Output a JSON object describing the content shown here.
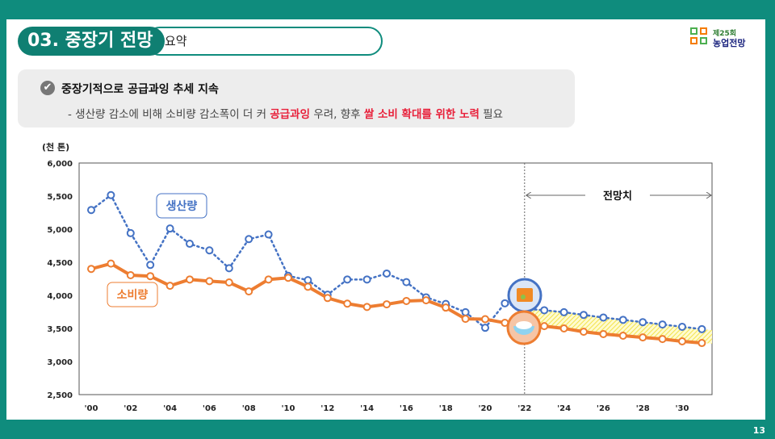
{
  "header": {
    "section_title": "03. 중장기 전망",
    "subtitle": "요약",
    "logo_line1": "제25회",
    "logo_line2": "농업전망"
  },
  "summary": {
    "headline": "중장기적으로 공급과잉 추세 지속",
    "body_parts": [
      "- 생산량 감소에 비해 소비량 감소폭이 더 커 ",
      "공급과잉",
      " 우려, 향후 ",
      "쌀 소비 확대를 위한 노력",
      " 필요"
    ]
  },
  "page_number": "13",
  "colors": {
    "production": "#4472c4",
    "consumption": "#ed7d31",
    "accent_red": "#e8213b",
    "frame": "#0f8c7d"
  },
  "chart_data": {
    "type": "line",
    "unit_label": "(천 톤)",
    "forecast_label": "전망치",
    "forecast_start": 2022,
    "ylim": [
      2500,
      6000
    ],
    "yticks": [
      2500,
      3000,
      3500,
      4000,
      4500,
      5000,
      5500,
      6000
    ],
    "ytick_labels": [
      "2,500",
      "3,000",
      "3,500",
      "4,000",
      "4,500",
      "5,000",
      "5,500",
      "6,000"
    ],
    "x": [
      2000,
      2001,
      2002,
      2003,
      2004,
      2005,
      2006,
      2007,
      2008,
      2009,
      2010,
      2011,
      2012,
      2013,
      2014,
      2015,
      2016,
      2017,
      2018,
      2019,
      2020,
      2021,
      2022,
      2023,
      2024,
      2025,
      2026,
      2027,
      2028,
      2029,
      2030,
      2031
    ],
    "xtick_labels": [
      "'00",
      "'02",
      "'04",
      "'06",
      "'08",
      "'10",
      "'12",
      "'14",
      "'16",
      "'18",
      "'20",
      "'22",
      "'24",
      "'26",
      "'28",
      "'30"
    ],
    "series": [
      {
        "name": "생산량",
        "style": "dotted",
        "values": [
          5290,
          5515,
          4940,
          4460,
          5010,
          4780,
          4680,
          4410,
          4850,
          4920,
          4295,
          4230,
          4010,
          4240,
          4240,
          4330,
          4200,
          3970,
          3870,
          3745,
          3510,
          3880,
          3800,
          3775,
          3745,
          3705,
          3665,
          3630,
          3595,
          3560,
          3525,
          3490
        ]
      },
      {
        "name": "소비량",
        "style": "solid",
        "values": [
          4400,
          4480,
          4305,
          4290,
          4145,
          4240,
          4215,
          4195,
          4060,
          4240,
          4265,
          4130,
          3960,
          3875,
          3825,
          3865,
          3915,
          3925,
          3815,
          3645,
          3640,
          3585,
          3560,
          3535,
          3500,
          3450,
          3415,
          3390,
          3365,
          3340,
          3305,
          3280
        ]
      }
    ]
  }
}
